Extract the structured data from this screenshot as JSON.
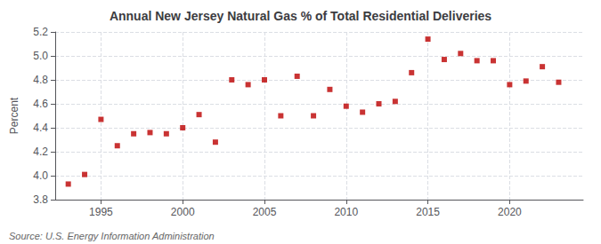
{
  "chart_data": {
    "type": "scatter",
    "title": "Annual New Jersey Natural Gas % of Total Residential Deliveries",
    "ylabel": "Percent",
    "annotations": [
      "Source: U.S. Energy Information Administration"
    ],
    "x": [
      1993,
      1994,
      1995,
      1996,
      1997,
      1998,
      1999,
      2000,
      2001,
      2002,
      2003,
      2004,
      2005,
      2006,
      2007,
      2008,
      2009,
      2010,
      2011,
      2012,
      2013,
      2014,
      2015,
      2016,
      2017,
      2018,
      2019,
      2020,
      2021,
      2022,
      2023
    ],
    "values": [
      3.93,
      4.01,
      4.47,
      4.25,
      4.35,
      4.36,
      4.35,
      4.4,
      4.51,
      4.28,
      4.8,
      4.76,
      4.8,
      4.5,
      4.83,
      4.5,
      4.72,
      4.58,
      4.53,
      4.6,
      4.62,
      4.86,
      5.14,
      4.97,
      5.02,
      4.96,
      4.96,
      4.76,
      4.79,
      4.91,
      4.78
    ],
    "color": "#bb0000",
    "marker": "square",
    "xlim": [
      1992.2,
      2024.5
    ],
    "xticks": [
      1995,
      2000,
      2005,
      2010,
      2015,
      2020
    ],
    "ylim": [
      3.8,
      5.2
    ],
    "yticks": [
      3.8,
      {
        "value": 4,
        "label": "4.0"
      },
      4.2,
      4.4,
      4.6,
      4.8,
      {
        "value": 5,
        "label": "5.0"
      },
      5.2
    ],
    "grid": true
  }
}
